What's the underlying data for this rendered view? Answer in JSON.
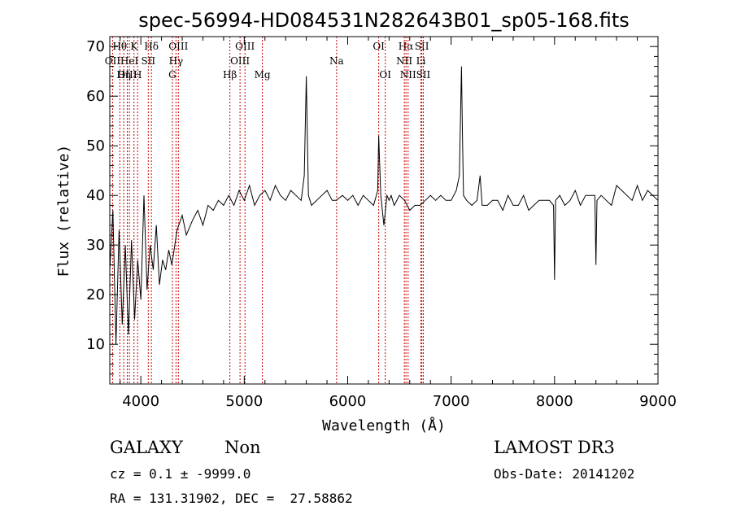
{
  "chart_data": {
    "type": "line",
    "title": "spec-56994-HD084531N282643B01_sp05-168.fits",
    "xlabel": "Wavelength (Å)",
    "ylabel": "Flux (relative)",
    "xlim": [
      3700,
      9000
    ],
    "ylim": [
      2,
      72
    ],
    "xticks": [
      4000,
      5000,
      6000,
      7000,
      8000,
      9000
    ],
    "yticks": [
      10,
      20,
      30,
      40,
      50,
      60,
      70
    ],
    "grid": false,
    "legend": "none",
    "line_color": "#000000",
    "marker_color": "#cc0000",
    "series": [
      {
        "x": [
          3700,
          3730,
          3760,
          3790,
          3820,
          3850,
          3880,
          3910,
          3940,
          3970,
          4000,
          4030,
          4060,
          4090,
          4120,
          4150,
          4180,
          4210,
          4240,
          4270,
          4300,
          4350,
          4400,
          4440,
          4500,
          4550,
          4600,
          4650,
          4700,
          4750,
          4800,
          4850,
          4900,
          4950,
          5000,
          5050,
          5100,
          5150,
          5200,
          5250,
          5300,
          5350,
          5400,
          5450,
          5500,
          5550,
          5580,
          5600,
          5620,
          5650,
          5700,
          5750,
          5800,
          5850,
          5890,
          5950,
          6000,
          6050,
          6100,
          6150,
          6200,
          6250,
          6290,
          6300,
          6320,
          6350,
          6380,
          6400,
          6420,
          6450,
          6500,
          6550,
          6600,
          6650,
          6700,
          6750,
          6800,
          6850,
          6900,
          6950,
          7000,
          7050,
          7080,
          7100,
          7110,
          7120,
          7150,
          7200,
          7250,
          7280,
          7300,
          7350,
          7400,
          7450,
          7500,
          7550,
          7600,
          7650,
          7700,
          7750,
          7800,
          7850,
          7900,
          7950,
          7990,
          8000,
          8010,
          8050,
          8100,
          8150,
          8200,
          8250,
          8300,
          8350,
          8390,
          8400,
          8410,
          8450,
          8500,
          8550,
          8600,
          8650,
          8700,
          8750,
          8800,
          8850,
          8900,
          8950,
          9000
        ],
        "y": [
          25,
          37,
          10,
          33,
          14,
          30,
          12,
          31,
          15,
          27,
          19,
          40,
          21,
          30,
          25,
          34,
          22,
          27,
          25,
          29,
          26,
          33,
          36,
          32,
          35,
          37,
          34,
          38,
          37,
          39,
          38,
          40,
          38,
          41,
          39,
          42,
          38,
          40,
          41,
          39,
          42,
          40,
          39,
          41,
          40,
          39,
          44,
          64,
          40,
          38,
          39,
          40,
          41,
          39,
          39,
          40,
          39,
          40,
          38,
          40,
          39,
          38,
          41,
          52,
          40,
          34,
          40,
          39,
          40,
          38,
          40,
          39,
          37,
          38,
          38,
          39,
          40,
          39,
          40,
          39,
          39,
          41,
          44,
          66,
          52,
          40,
          39,
          38,
          39,
          44,
          38,
          38,
          39,
          39,
          37,
          40,
          38,
          38,
          40,
          37,
          38,
          39,
          39,
          39,
          38,
          23,
          39,
          40,
          38,
          39,
          41,
          38,
          40,
          40,
          40,
          26,
          39,
          40,
          39,
          38,
          42,
          41,
          40,
          39,
          42,
          39,
          41,
          40,
          39
        ]
      }
    ],
    "spectral_lines": [
      {
        "label": "OII",
        "x": 3727,
        "row": 1
      },
      {
        "label": "Hθ",
        "x": 3797,
        "row": 0
      },
      {
        "label": "OIII",
        "x": 3869,
        "row": 2
      },
      {
        "label": "HeI",
        "x": 3889,
        "row": 1
      },
      {
        "label": "Hη",
        "x": 3835,
        "row": 2
      },
      {
        "label": "K",
        "x": 3934,
        "row": 0
      },
      {
        "label": "H",
        "x": 3969,
        "row": 2
      },
      {
        "label": "Hδ",
        "x": 4102,
        "row": 0
      },
      {
        "label": "SII",
        "x": 4072,
        "row": 1
      },
      {
        "label": "OIII",
        "x": 4363,
        "row": 0
      },
      {
        "label": "Hγ",
        "x": 4340,
        "row": 1
      },
      {
        "label": "G",
        "x": 4305,
        "row": 2
      },
      {
        "label": "OIII",
        "x": 5007,
        "row": 0
      },
      {
        "label": "OIII",
        "x": 4959,
        "row": 1
      },
      {
        "label": "Hβ",
        "x": 4861,
        "row": 2
      },
      {
        "label": "Mg",
        "x": 5175,
        "row": 2
      },
      {
        "label": "Na",
        "x": 5893,
        "row": 1
      },
      {
        "label": "OI",
        "x": 6300,
        "row": 0
      },
      {
        "label": "OI",
        "x": 6363,
        "row": 2
      },
      {
        "label": "Hα",
        "x": 6563,
        "row": 0
      },
      {
        "label": "SII",
        "x": 6717,
        "row": 0
      },
      {
        "label": "NII",
        "x": 6548,
        "row": 1
      },
      {
        "label": "Li",
        "x": 6708,
        "row": 1
      },
      {
        "label": "NII",
        "x": 6584,
        "row": 2
      },
      {
        "label": "SII",
        "x": 6731,
        "row": 2
      }
    ]
  },
  "footer": {
    "object_class": "GALAXY",
    "subclass": "Non",
    "survey": "LAMOST DR3",
    "cz_line": "cz = 0.1 ± -9999.0",
    "obs_date_line": "Obs-Date: 20141202",
    "coord_line": "RA = 131.31902, DEC =  27.58862"
  }
}
